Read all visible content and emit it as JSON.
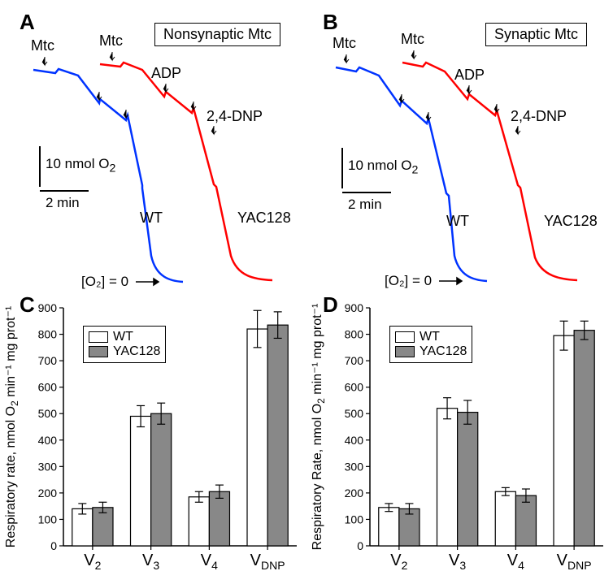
{
  "colors": {
    "blue": "#0033ff",
    "red": "#ff0000",
    "black": "#000000",
    "wt_fill": "#ffffff",
    "yac_fill": "#888888",
    "axis": "#000000",
    "bg": "#ffffff"
  },
  "panels": {
    "A": {
      "label": "A",
      "title": "Nonsynaptic Mtc",
      "annotations": {
        "mtc": "Mtc",
        "adp": "ADP",
        "dnp": "2,4-DNP",
        "wt": "WT",
        "yac": "YAC128",
        "scale_y": "10 nmol O",
        "scale_y_sub": "2",
        "scale_x": "2 min",
        "zero": "[O₂] = 0"
      }
    },
    "B": {
      "label": "B",
      "title": "Synaptic Mtc",
      "annotations": {
        "mtc": "Mtc",
        "adp": "ADP",
        "dnp": "2,4-DNP",
        "wt": "WT",
        "yac": "YAC128",
        "scale_y": "10 nmol O",
        "scale_y_sub": "2",
        "scale_x": "2 min",
        "zero": "[O₂] = 0"
      }
    },
    "C": {
      "label": "C",
      "chart": {
        "type": "bar",
        "ylabel_top": "Respiratory rate, nmol O",
        "ylabel_sub": "2",
        "ylabel_bottom": " min⁻¹ mg prot⁻¹",
        "ylim": [
          0,
          900
        ],
        "ytick_step": 100,
        "categories": [
          "V₂",
          "V₃",
          "V₄",
          "V_DNP"
        ],
        "category_labels": [
          {
            "base": "V",
            "sub": "2"
          },
          {
            "base": "V",
            "sub": "3"
          },
          {
            "base": "V",
            "sub": "4"
          },
          {
            "base": "V",
            "sub": "DNP"
          }
        ],
        "series": [
          {
            "name": "WT",
            "fill": "#ffffff",
            "stroke": "#000000",
            "values": [
              140,
              490,
              185,
              820
            ],
            "errors": [
              20,
              40,
              20,
              70
            ]
          },
          {
            "name": "YAC128",
            "fill": "#888888",
            "stroke": "#000000",
            "values": [
              145,
              500,
              205,
              835
            ],
            "errors": [
              20,
              40,
              25,
              50
            ]
          }
        ],
        "bar_width": 0.35,
        "label_fontsize": 16,
        "tick_fontsize": 14,
        "legend": {
          "items": [
            "WT",
            "YAC128"
          ]
        }
      }
    },
    "D": {
      "label": "D",
      "chart": {
        "type": "bar",
        "ylabel_top": "Respiratory Rate, nmol O",
        "ylabel_sub": "2",
        "ylabel_bottom": " min⁻¹ mg prot⁻¹",
        "ylim": [
          0,
          900
        ],
        "ytick_step": 100,
        "categories": [
          "V₂",
          "V₃",
          "V₄",
          "V_DNP"
        ],
        "category_labels": [
          {
            "base": "V",
            "sub": "2"
          },
          {
            "base": "V",
            "sub": "3"
          },
          {
            "base": "V",
            "sub": "4"
          },
          {
            "base": "V",
            "sub": "DNP"
          }
        ],
        "series": [
          {
            "name": "WT",
            "fill": "#ffffff",
            "stroke": "#000000",
            "values": [
              145,
              520,
              205,
              795
            ],
            "errors": [
              15,
              40,
              15,
              55
            ]
          },
          {
            "name": "YAC128",
            "fill": "#888888",
            "stroke": "#000000",
            "values": [
              140,
              505,
              190,
              815
            ],
            "errors": [
              20,
              45,
              25,
              35
            ]
          }
        ],
        "bar_width": 0.35,
        "label_fontsize": 16,
        "tick_fontsize": 14,
        "legend": {
          "items": [
            "WT",
            "YAC128"
          ]
        }
      }
    }
  }
}
